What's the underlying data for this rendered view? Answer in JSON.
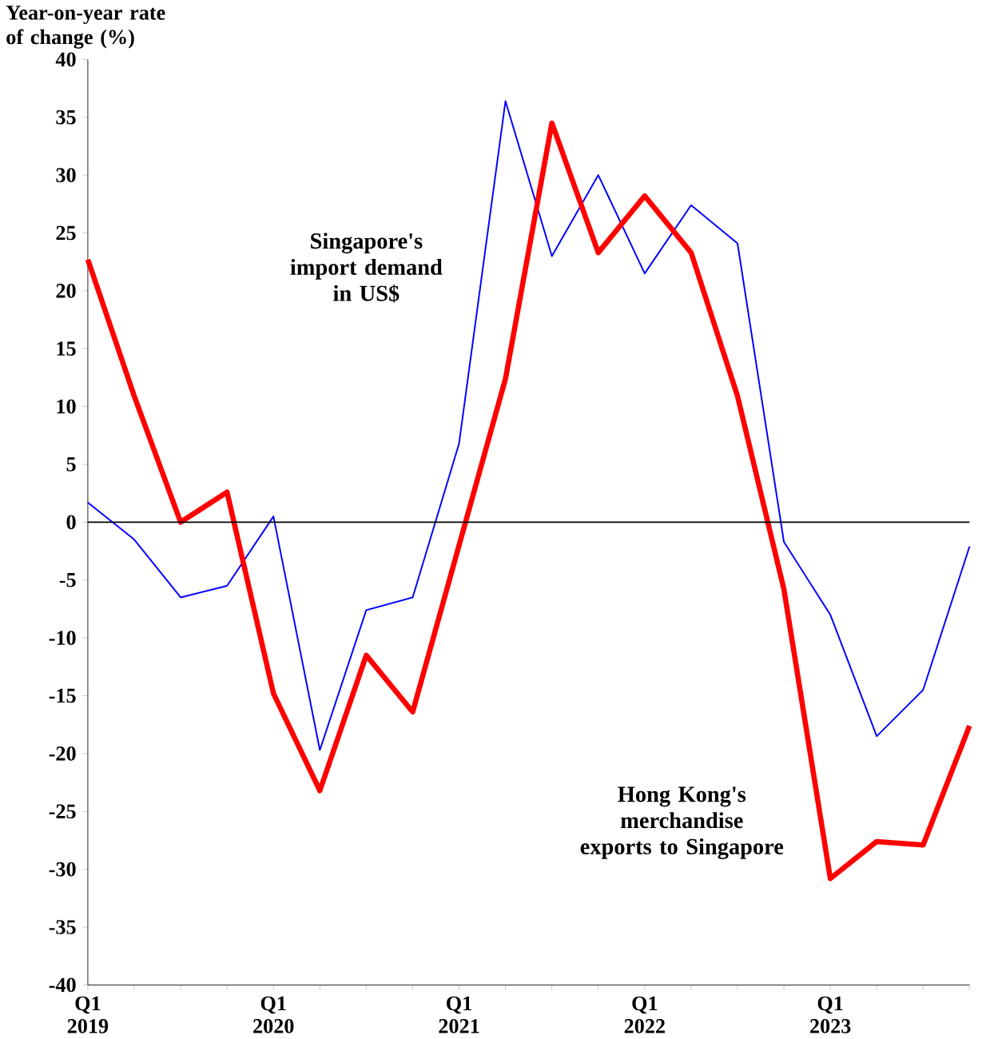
{
  "chart_data": {
    "type": "line",
    "ylabel": "Year-on-year rate of change (%)",
    "categories": [
      "Q1 2019",
      null,
      null,
      null,
      "Q1 2020",
      null,
      null,
      null,
      "Q1 2021",
      null,
      null,
      null,
      "Q1 2022",
      null,
      null,
      null,
      "Q1 2023",
      null,
      null,
      null
    ],
    "series": [
      {
        "name": "Singapore's import demand in US$",
        "color": "#0000ff",
        "values": [
          1.7,
          -1.5,
          -6.5,
          -5.5,
          0.5,
          -19.7,
          -7.6,
          -6.5,
          6.8,
          36.4,
          23,
          30,
          21.5,
          27.4,
          24.1,
          -1.7,
          -8,
          -18.5,
          -14.5,
          -2.1
        ]
      },
      {
        "name": "Hong Kong's merchandise exports to Singapore",
        "color": "#ff0000",
        "values": [
          22.7,
          10.9,
          0,
          2.6,
          -14.8,
          -23.2,
          -11.5,
          -16.4,
          -2,
          12.4,
          34.5,
          23.3,
          28.2,
          23.3,
          10.9,
          -5.8,
          -30.8,
          -27.6,
          -27.9,
          -17.6
        ]
      }
    ],
    "ylim": [
      -40,
      40
    ],
    "yticks": [
      -40,
      -35,
      -30,
      -25,
      -20,
      -15,
      -10,
      -5,
      0,
      5,
      10,
      15,
      20,
      25,
      30,
      35,
      40
    ],
    "ref_lines": [
      {
        "axis": "y",
        "value": 0,
        "color": "#000000"
      }
    ],
    "legend": false,
    "grid": false,
    "marker": "none",
    "line_style": "solid"
  }
}
